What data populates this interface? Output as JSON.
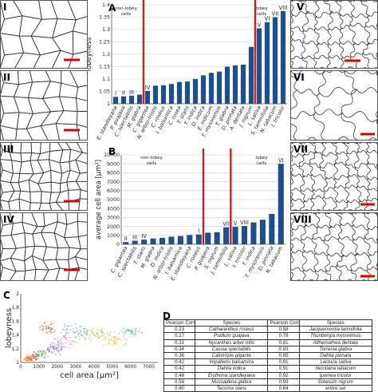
{
  "figure": {
    "panel_letters": [
      "A",
      "B",
      "C",
      "D"
    ],
    "cell_panels_left": [
      "I",
      "II",
      "III",
      "IV"
    ],
    "cell_panels_right": [
      "V",
      "VI",
      "VII",
      "VIII"
    ]
  },
  "colors": {
    "bar": "#1f4e8c",
    "divider": "#cc1f1f",
    "scalebar": "#e00000",
    "cell_line": "#333333"
  },
  "chart_data": [
    {
      "id": "A",
      "type": "bar",
      "ylabel": "lobeyness",
      "ylim": [
        1,
        1.4
      ],
      "yticks": [
        "1",
        "1.05",
        "1.1",
        "1.15",
        "1.2",
        "1.25",
        "1.3",
        "1.35",
        "1.4"
      ],
      "grid": true,
      "categories": [
        "E. standleyana",
        "P. guajava",
        "C. spectabilis",
        "M. glabra",
        "C. gigantea",
        "N. arbor-tristis",
        "C. roseus",
        "I. balsamica",
        "C. rosea",
        "T. stans",
        "T. indica",
        "D. indica",
        "E. indicum",
        "T. mysorensis",
        "T. glabra",
        "D. pinnata",
        "A. dentata",
        "J. nigrum",
        "L. sativa",
        "S. tamnifolia",
        "N. tabacum",
        "I. tricolor"
      ],
      "values": [
        1.028,
        1.03,
        1.033,
        1.037,
        1.052,
        1.073,
        1.075,
        1.08,
        1.088,
        1.09,
        1.1,
        1.115,
        1.125,
        1.13,
        1.15,
        1.155,
        1.158,
        1.23,
        1.305,
        1.33,
        1.35,
        1.375
      ],
      "value_labels": [
        "I",
        "II",
        "III",
        "",
        "IV",
        "",
        "",
        "",
        "",
        "",
        "",
        "",
        "",
        "",
        "",
        "",
        "",
        "",
        "V",
        "VI",
        "VII",
        "VIII"
      ],
      "region_labels": [
        "non-lobey\ncells",
        "lobey\ncells"
      ]
    },
    {
      "id": "B",
      "type": "bar",
      "ylabel": "average cell area [μm²]",
      "ylim": [
        0,
        10000
      ],
      "yticks": [
        "0",
        "1000",
        "2000",
        "3000",
        "4000",
        "5000",
        "6000",
        "7000",
        "8000",
        "9000",
        "10000"
      ],
      "grid": true,
      "categories": [
        "C. gigantea",
        "C. spectabilis",
        "T. stans",
        "M. glabra",
        "D. indica",
        "N. arbor-tristis",
        "I. balsamica",
        "E. standleyana",
        "C. roseus",
        "P. guajava",
        "S. nigrum",
        "J. tamnifolia",
        "L. sativa",
        "I. tricolor",
        "T. indica",
        "T. mysorensis",
        "D. pinnata",
        "N. tabacum"
      ],
      "values": [
        250,
        400,
        520,
        650,
        720,
        850,
        920,
        1050,
        1100,
        1300,
        1350,
        1900,
        1950,
        2050,
        2450,
        2750,
        3400,
        9000
      ],
      "value_labels": [
        "II",
        "III",
        "IV",
        "",
        "",
        "",
        "",
        "",
        "I",
        "",
        "",
        "VII",
        "V",
        "VIII",
        "",
        "",
        "",
        "VI"
      ],
      "region_labels": [
        "non-lobey\ncells",
        "lobey\ncells"
      ]
    },
    {
      "id": "C",
      "type": "scatter",
      "xlabel": "cell area [μm²]",
      "ylabel": "lobeyness",
      "xlim": [
        0,
        7500
      ],
      "ylim": [
        1,
        2
      ],
      "xticks": [
        "0",
        "1000",
        "2000",
        "3000",
        "4000",
        "5000",
        "6000",
        "7000"
      ],
      "yticks": [
        "1",
        "1.2",
        "1.4",
        "1.6",
        "1.8",
        "2"
      ]
    }
  ],
  "table_d": {
    "headers": [
      "Pearson Corr. Coeff.",
      "Species",
      "Pearson Corr. Coeff.",
      "Species"
    ],
    "rows": [
      [
        "0.23",
        "Catharanthus roseus",
        "0.58",
        "Jacquemontia tamnifolia"
      ],
      [
        "0.27",
        "Psidium guajava",
        "0.78",
        "Thunbergia mysorensis"
      ],
      [
        "0.31",
        "Nycanthes arbor tritis",
        "0.81",
        "Althemathea dentata"
      ],
      [
        "0.34",
        "Cassia spectabilis",
        "0.83",
        "Torrenia glabra"
      ],
      [
        "0.36",
        "Calotropis gigante",
        "0.85",
        "Dahlia pinnata"
      ],
      [
        "0.42",
        "Impatiens balsamica",
        "0.91",
        "Lactuca sativa"
      ],
      [
        "0.42",
        "Dahlia indica",
        "0.91",
        "Nicotiana tabacum"
      ],
      [
        "0.48",
        "Erythrina standleyana",
        "0.92",
        "Ipomea tricolor"
      ],
      [
        "0.56",
        "Mussadena glabra",
        "0.93",
        "Solanum nigrum"
      ],
      [
        "0.60",
        "Tecoma stans",
        "0.64",
        "entire set"
      ]
    ]
  }
}
